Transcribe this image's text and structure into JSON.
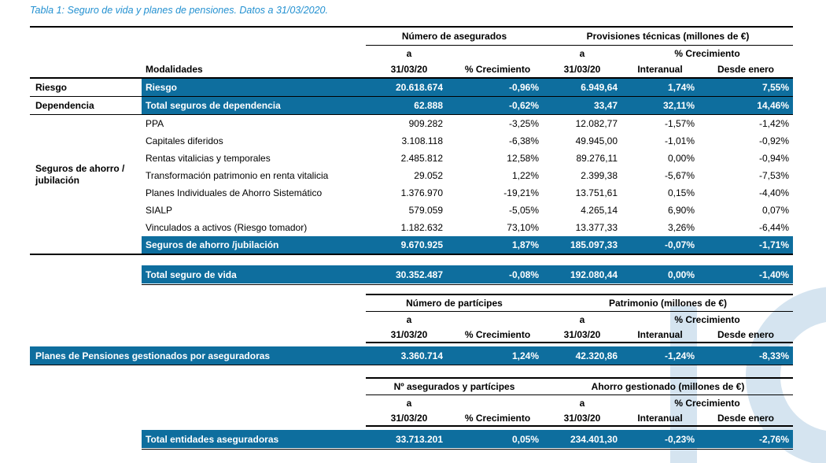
{
  "title": "Tabla 1: Seguro de vida y planes de pensiones. Datos a 31/03/2020.",
  "colors": {
    "highlight_bar": "#0e6e9e",
    "title_text": "#2491d1",
    "watermark": "#d5e4f0",
    "rule": "#000000"
  },
  "hdr": {
    "a": "a",
    "date": "31/03/20",
    "growth": "% Crecimiento",
    "interannual": "Interanual",
    "since_january": "Desde enero",
    "modalities": "Modalidades"
  },
  "s1": {
    "group1": "Número de asegurados",
    "group2": "Provisiones técnicas (millones de €)",
    "cat_risk": "Riesgo",
    "cat_dependency": "Dependencia",
    "cat_savings": "Seguros de ahorro / jubilación",
    "rows": [
      {
        "label": "Riesgo",
        "values": [
          "20.618.674",
          "-0,96%",
          "6.949,64",
          "1,74%",
          "7,55%"
        ]
      },
      {
        "label": "Total seguros de dependencia",
        "values": [
          "62.888",
          "-0,62%",
          "33,47",
          "32,11%",
          "14,46%"
        ]
      },
      {
        "label": "PPA",
        "values": [
          "909.282",
          "-3,25%",
          "12.082,77",
          "-1,57%",
          "-1,42%"
        ]
      },
      {
        "label": "Capitales diferidos",
        "values": [
          "3.108.118",
          "-6,38%",
          "49.945,00",
          "-1,01%",
          "-0,92%"
        ]
      },
      {
        "label": "Rentas vitalicias y temporales",
        "values": [
          "2.485.812",
          "12,58%",
          "89.276,11",
          "0,00%",
          "-0,94%"
        ]
      },
      {
        "label": "Transformación patrimonio en renta vitalicia",
        "values": [
          "29.052",
          "1,22%",
          "2.399,38",
          "-5,67%",
          "-7,53%"
        ]
      },
      {
        "label": "Planes Individuales de Ahorro Sistemático",
        "values": [
          "1.376.970",
          "-19,21%",
          "13.751,61",
          "0,15%",
          "-4,40%"
        ]
      },
      {
        "label": "SIALP",
        "values": [
          "579.059",
          "-5,05%",
          "4.265,14",
          "6,90%",
          "0,07%"
        ]
      },
      {
        "label": "Vinculados a activos (Riesgo tomador)",
        "values": [
          "1.182.632",
          "73,10%",
          "13.377,33",
          "3,26%",
          "-6,44%"
        ]
      },
      {
        "label": "Seguros de ahorro /jubilación",
        "values": [
          "9.670.925",
          "1,87%",
          "185.097,33",
          "-0,07%",
          "-1,71%"
        ]
      }
    ],
    "total": {
      "label": "Total seguro de vida",
      "values": [
        "30.352.487",
        "-0,08%",
        "192.080,44",
        "0,00%",
        "-1,40%"
      ]
    }
  },
  "s2": {
    "group1": "Número de partícipes",
    "group2": "Patrimonio (millones de €)",
    "row": {
      "label": "Planes de Pensiones gestionados por aseguradoras",
      "values": [
        "3.360.714",
        "1,24%",
        "42.320,86",
        "-1,24%",
        "-8,33%"
      ]
    }
  },
  "s3": {
    "group1": "Nº asegurados y partícipes",
    "group2": "Ahorro gestionado (millones de €)",
    "row": {
      "label": "Total entidades aseguradoras",
      "values": [
        "33.713.201",
        "0,05%",
        "234.401,30",
        "-0,23%",
        "-2,76%"
      ]
    }
  }
}
